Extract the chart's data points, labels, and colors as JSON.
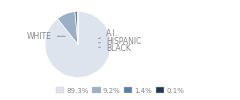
{
  "labels": [
    "WHITE",
    "HISPANIC",
    "A.I.",
    "BLACK"
  ],
  "values": [
    89.3,
    9.2,
    1.4,
    0.1
  ],
  "colors": [
    "#dde4ed",
    "#9bafc7",
    "#5a7fa8",
    "#1e3a5a"
  ],
  "legend_labels": [
    "89.3%",
    "9.2%",
    "1.4%",
    "0.1%"
  ],
  "background_color": "#ffffff",
  "text_color": "#888888",
  "font_size": 5.5
}
